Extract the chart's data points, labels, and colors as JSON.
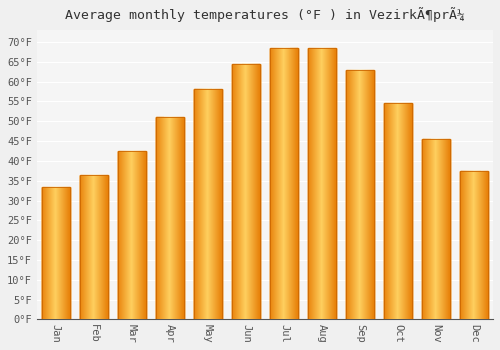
{
  "title": "Average monthly temperatures (°F ) in VezirkÃ¶prÃ¼",
  "months": [
    "Jan",
    "Feb",
    "Mar",
    "Apr",
    "May",
    "Jun",
    "Jul",
    "Aug",
    "Sep",
    "Oct",
    "Nov",
    "Dec"
  ],
  "values": [
    33.5,
    36.5,
    42.5,
    51.0,
    58.0,
    64.5,
    68.5,
    68.5,
    63.0,
    54.5,
    45.5,
    37.5
  ],
  "bar_color_center": "#FFB300",
  "bar_color_edge": "#FF8C00",
  "background_color": "#f0f0f0",
  "plot_bg_color": "#f5f5f5",
  "grid_color": "#ffffff",
  "ylim": [
    0,
    73
  ],
  "yticks": [
    0,
    5,
    10,
    15,
    20,
    25,
    30,
    35,
    40,
    45,
    50,
    55,
    60,
    65,
    70
  ],
  "title_fontsize": 9.5,
  "tick_fontsize": 7.5,
  "figsize": [
    5.0,
    3.5
  ],
  "dpi": 100
}
